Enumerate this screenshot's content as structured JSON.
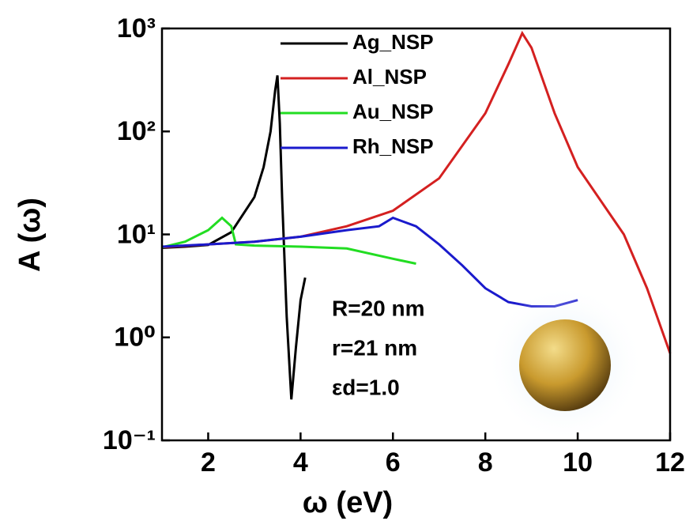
{
  "chart_data": {
    "type": "line",
    "log_y": true,
    "xlabel": "ω (eV)",
    "ylabel": "A (ω)",
    "xlim": [
      1,
      12
    ],
    "xticks": [
      2,
      4,
      6,
      8,
      10,
      12
    ],
    "ylim": [
      0.1,
      1000
    ],
    "yticks": [
      {
        "value": 0.1,
        "label": "10⁻¹"
      },
      {
        "value": 1,
        "label": "10⁰"
      },
      {
        "value": 10,
        "label": "10¹"
      },
      {
        "value": 100,
        "label": "10²"
      },
      {
        "value": 1000,
        "label": "10³"
      }
    ],
    "legend": "top-center",
    "annotations": [
      "R=20 nm",
      "r=21 nm",
      "εd=1.0"
    ],
    "series": [
      {
        "name": "Ag_NSP",
        "color": "#000000",
        "x": [
          1,
          1.5,
          2,
          2.5,
          3,
          3.2,
          3.35,
          3.45,
          3.5,
          3.55,
          3.6,
          3.7,
          3.8,
          3.9,
          4.0,
          4.1
        ],
        "values": [
          7.4,
          7.6,
          7.9,
          10.5,
          23,
          45,
          100,
          250,
          350,
          120,
          23,
          1.6,
          0.25,
          0.8,
          2.3,
          3.8
        ]
      },
      {
        "name": "Al_NSP",
        "color": "#d42020",
        "x": [
          1,
          2,
          3,
          4,
          5,
          6,
          7,
          8,
          8.5,
          8.8,
          9,
          9.5,
          10,
          11,
          11.5,
          12
        ],
        "values": [
          7.5,
          8,
          8.5,
          9.5,
          12,
          17,
          35,
          150,
          450,
          900,
          650,
          150,
          45,
          10,
          3,
          0.7
        ]
      },
      {
        "name": "Au_NSP",
        "color": "#22dd22",
        "x": [
          1,
          1.5,
          2,
          2.3,
          2.5,
          2.6,
          3,
          4,
          5,
          6,
          6.5
        ],
        "values": [
          7.5,
          8.5,
          11,
          14.5,
          12,
          8,
          7.8,
          7.6,
          7.3,
          5.8,
          5.2
        ]
      },
      {
        "name": "Rh_NSP",
        "color": "#1a1acc",
        "x": [
          1,
          2,
          3,
          4,
          5,
          5.7,
          6,
          6.5,
          7,
          7.5,
          8,
          8.5,
          9,
          9.5,
          10
        ],
        "values": [
          7.6,
          8,
          8.5,
          9.5,
          11,
          12,
          14.5,
          12,
          8,
          5,
          3,
          2.2,
          2,
          2,
          2.3
        ]
      }
    ]
  }
}
